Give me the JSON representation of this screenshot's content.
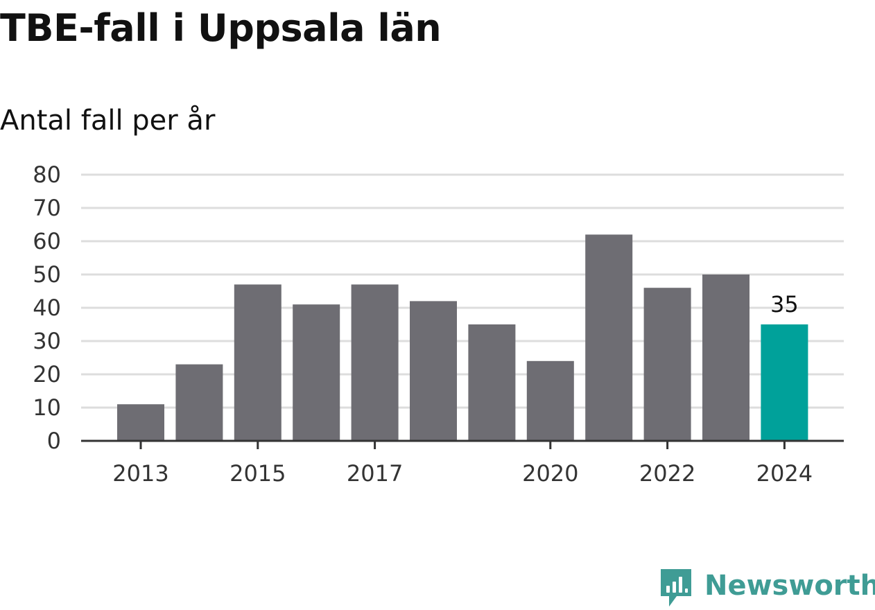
{
  "chart_data": {
    "type": "bar",
    "title": "TBE-fall i Uppsala län",
    "subtitle": "Antal fall per år",
    "categories": [
      "2013",
      "2014",
      "2015",
      "2016",
      "2017",
      "2018",
      "2019",
      "2020",
      "2021",
      "2022",
      "2023",
      "2024"
    ],
    "values": [
      11,
      23,
      47,
      41,
      47,
      42,
      35,
      24,
      62,
      46,
      50,
      35
    ],
    "x_tick_labels": [
      "2013",
      "2015",
      "2017",
      "2020",
      "2022",
      "2024"
    ],
    "y_ticks": [
      0,
      10,
      20,
      30,
      40,
      50,
      60,
      70,
      80
    ],
    "ylim": [
      0,
      80
    ],
    "xlabel": "",
    "ylabel": "",
    "grid": true,
    "legend": "none",
    "highlight": {
      "category": "2024",
      "value_label": "35"
    },
    "colors": {
      "bar": "#6e6d73",
      "highlight_bar": "#00a19a",
      "grid": "#dddddd",
      "axis": "#333333",
      "tick_text": "#333333"
    }
  },
  "brand": {
    "name": "Newsworthy",
    "icon": "newsworthy-logo-icon",
    "color": "#3f9c95"
  }
}
